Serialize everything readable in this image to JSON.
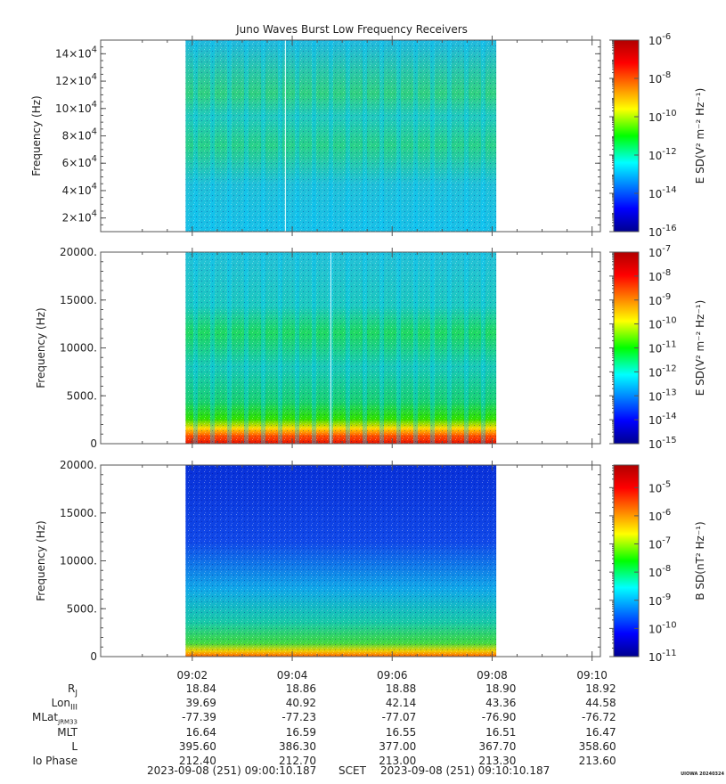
{
  "title": "Juno Waves Burst Low Frequency Receivers",
  "chart_data": [
    {
      "type": "heatmap",
      "panel": "upper electric",
      "ylabel": "Frequency (Hz)",
      "ylim": [
        10000,
        150000
      ],
      "yticks": [
        20000,
        40000,
        60000,
        80000,
        100000,
        120000,
        140000
      ],
      "ytick_labels": [
        [
          "2",
          "4"
        ],
        [
          "4",
          "4"
        ],
        [
          "6",
          "4"
        ],
        [
          "8",
          "4"
        ],
        [
          "10",
          "4"
        ],
        [
          "12",
          "4"
        ],
        [
          "14",
          "4"
        ]
      ],
      "colorbar_label": "E SD(V² m⁻² Hz⁻¹)",
      "colorbar_range_exp": [
        -16,
        -6
      ],
      "colorbar_labels": [
        [
          "10",
          "-6"
        ],
        [
          "10",
          "-8"
        ],
        [
          "10",
          "-10"
        ],
        [
          "10",
          "-12"
        ],
        [
          "10",
          "-14"
        ],
        [
          "10",
          "-16"
        ]
      ],
      "data_start": "09:01:52",
      "data_end": "09:08:05"
    },
    {
      "type": "heatmap",
      "panel": "middle electric",
      "ylabel": "Frequency (Hz)",
      "ylim": [
        0,
        20000
      ],
      "yticks": [
        0,
        5000,
        10000,
        15000,
        20000
      ],
      "ytick_labels": [
        "0",
        "5000.",
        "10000.",
        "15000.",
        "20000."
      ],
      "colorbar_label": "E SD(V² m⁻² Hz⁻¹)",
      "colorbar_range_exp": [
        -15,
        -7
      ],
      "colorbar_labels": [
        [
          "10",
          "-7"
        ],
        [
          "10",
          "-8"
        ],
        [
          "10",
          "-9"
        ],
        [
          "10",
          "-10"
        ],
        [
          "10",
          "-11"
        ],
        [
          "10",
          "-12"
        ],
        [
          "10",
          "-13"
        ],
        [
          "10",
          "-14"
        ],
        [
          "10",
          "-15"
        ]
      ],
      "data_start": "09:01:52",
      "data_end": "09:08:05"
    },
    {
      "type": "heatmap",
      "panel": "magnetic",
      "ylabel": "Frequency (Hz)",
      "ylim": [
        0,
        20000
      ],
      "yticks": [
        0,
        5000,
        10000,
        15000,
        20000
      ],
      "ytick_labels": [
        "0",
        "5000.",
        "10000.",
        "15000.",
        "20000."
      ],
      "colorbar_label": "B SD(nT² Hz⁻¹)",
      "colorbar_range_exp": [
        -11,
        -4.2
      ],
      "colorbar_labels": [
        [
          "10",
          "-5"
        ],
        [
          "10",
          "-6"
        ],
        [
          "10",
          "-7"
        ],
        [
          "10",
          "-8"
        ],
        [
          "10",
          "-9"
        ],
        [
          "10",
          "-10"
        ],
        [
          "10",
          "-11"
        ]
      ],
      "data_start": "09:01:52",
      "data_end": "09:08:05"
    }
  ],
  "time_axis": {
    "range": [
      "09:00:10",
      "09:10:10"
    ],
    "major_ticks": [
      "09:02",
      "09:04",
      "09:06",
      "09:08",
      "09:10"
    ]
  },
  "ephemeris": {
    "rows": [
      {
        "label": "R",
        "sub": "J",
        "values": [
          "18.84",
          "18.86",
          "18.88",
          "18.90",
          "18.92"
        ]
      },
      {
        "label": "Lon",
        "sub": "III",
        "values": [
          "39.69",
          "40.92",
          "42.14",
          "43.36",
          "44.58"
        ]
      },
      {
        "label": "MLat",
        "sub": "JRM33",
        "values": [
          "-77.39",
          "-77.23",
          "-77.07",
          "-76.90",
          "-76.72"
        ]
      },
      {
        "label": "MLT",
        "sub": "",
        "values": [
          "16.64",
          "16.59",
          "16.55",
          "16.51",
          "16.47"
        ]
      },
      {
        "label": "L",
        "sub": "",
        "values": [
          "395.60",
          "386.30",
          "377.00",
          "367.70",
          "358.60"
        ]
      },
      {
        "label": "Io Phase",
        "sub": "",
        "values": [
          "212.40",
          "212.70",
          "213.00",
          "213.30",
          "213.60"
        ]
      }
    ]
  },
  "footer": {
    "start": "2023-09-08 (251) 09:00:10.187",
    "mid": "SCET",
    "end": "2023-09-08 (251) 09:10:10.187"
  },
  "stamp": "UIOWA 20240324"
}
